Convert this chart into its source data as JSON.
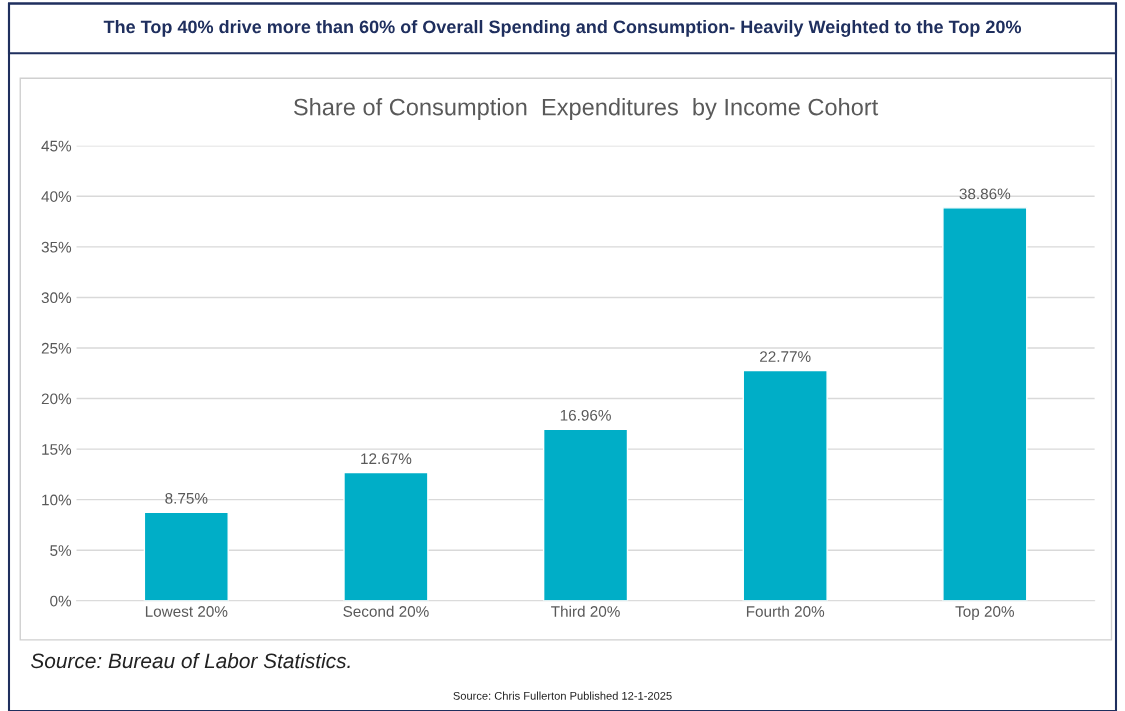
{
  "chart_data": {
    "type": "bar",
    "title": "The Top 40% drive more than 60% of Overall Spending and Consumption- Heavily Weighted to the Top 20%",
    "subtitle": "Share of Consumption  Expenditures  by Income Cohort",
    "categories": [
      "Lowest 20%",
      "Second 20%",
      "Third 20%",
      "Fourth 20%",
      "Top 20%"
    ],
    "values": [
      8.75,
      12.67,
      16.96,
      22.77,
      38.86
    ],
    "value_labels": [
      "8.75%",
      "12.67%",
      "16.96%",
      "22.77%",
      "38.86%"
    ],
    "color": "#00aec7",
    "ylim": [
      0,
      45
    ],
    "yticks": [
      {
        "value": 0,
        "label": "0%"
      },
      {
        "value": 5,
        "label": "5%"
      },
      {
        "value": 10,
        "label": "10%"
      },
      {
        "value": 15,
        "label": "15%"
      },
      {
        "value": 20,
        "label": "20%"
      },
      {
        "value": 25,
        "label": "25%"
      },
      {
        "value": 30,
        "label": "30%"
      },
      {
        "value": 35,
        "label": "35%"
      },
      {
        "value": 40,
        "label": "40%"
      },
      {
        "value": 45,
        "label": "45%"
      }
    ],
    "grid": "y",
    "annotations": [
      "Source: Bureau of Labor Statistics.",
      "Source: Chris Fullerton Published 12-1-2025"
    ]
  }
}
